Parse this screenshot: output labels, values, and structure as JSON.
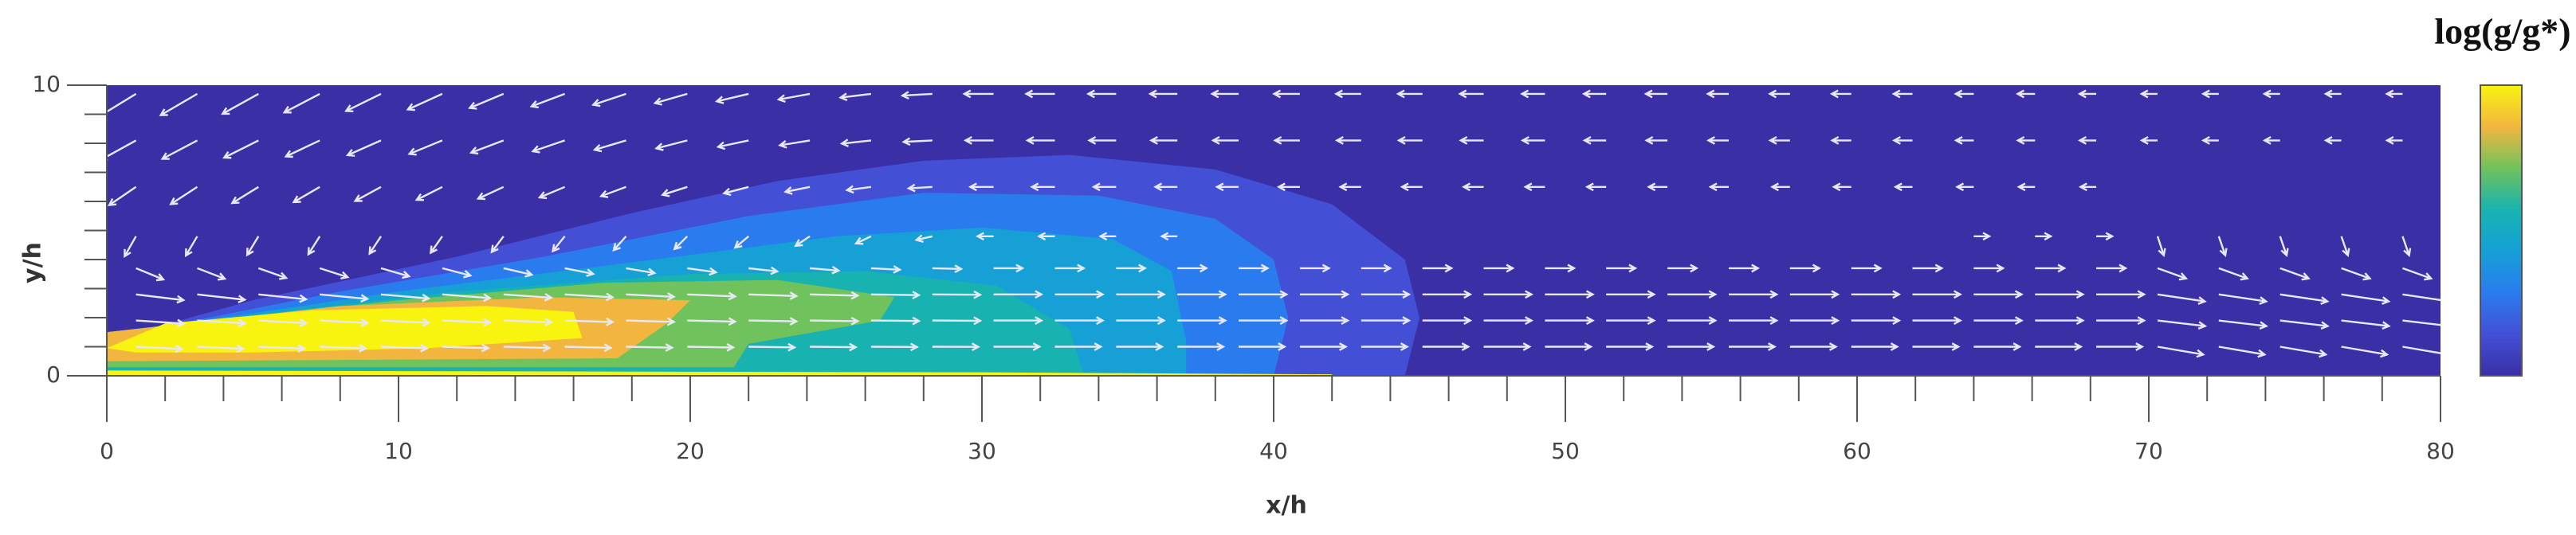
{
  "chart_data": {
    "type": "contour",
    "xlabel": "x/h",
    "ylabel": "y/h",
    "colorbar_label": "log(g/g*)",
    "xlim": [
      0,
      80
    ],
    "xticks": [
      0,
      10,
      20,
      30,
      40,
      50,
      60,
      70,
      80
    ],
    "ylim": [
      0,
      10
    ],
    "yticks": [
      0,
      10
    ],
    "colormap": [
      "#3b2fa6",
      "#4350d6",
      "#2a7cee",
      "#16a0d6",
      "#18b3b0",
      "#70c25c",
      "#f2b640",
      "#f8f410"
    ]
  }
}
